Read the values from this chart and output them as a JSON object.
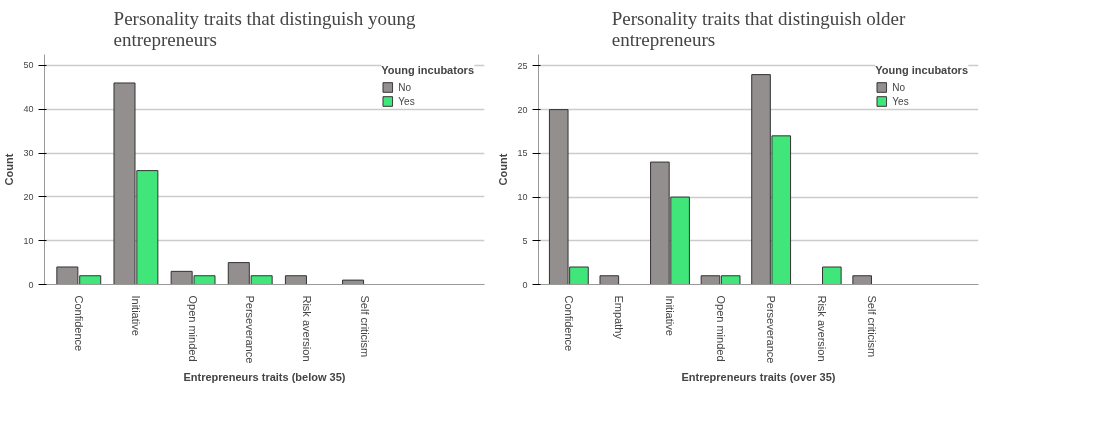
{
  "chart_data": [
    {
      "type": "bar",
      "title": "Personality traits that distinguish young entrepreneurs",
      "xlabel": "Entrepreneurs traits (below 35)",
      "ylabel": "Count",
      "legend_title": "Young incubators",
      "legend": "top right",
      "grid": "y",
      "categories": [
        "Confidence",
        "Initiative",
        "Open minded",
        "Perseverance",
        "Risk aversion",
        "Self criticism"
      ],
      "ylim": [
        0,
        52.5
      ],
      "yticks": [
        0,
        10,
        20,
        30,
        40,
        50
      ],
      "series": [
        {
          "name": "No",
          "color": "#948f8f",
          "values": [
            4,
            46,
            3,
            5,
            2,
            1
          ]
        },
        {
          "name": "Yes",
          "color": "#40e67a",
          "values": [
            2,
            26,
            2,
            2,
            null,
            null
          ]
        }
      ]
    },
    {
      "type": "bar",
      "title": "Personality traits that distinguish older entrepreneurs",
      "xlabel": "Entrepreneurs traits (over 35)",
      "ylabel": "Count",
      "legend_title": "Young incubators",
      "legend": "top right",
      "grid": "y",
      "categories": [
        "Confidence",
        "Empathy",
        "Initiative",
        "Open minded",
        "Perseverance",
        "Risk aversion",
        "Self criticism"
      ],
      "ylim": [
        0,
        26.3
      ],
      "yticks": [
        0,
        5,
        10,
        15,
        20,
        25
      ],
      "series": [
        {
          "name": "No",
          "color": "#948f8f",
          "values": [
            20,
            1,
            14,
            1,
            24,
            null,
            1
          ]
        },
        {
          "name": "Yes",
          "color": "#40e67a",
          "values": [
            2,
            null,
            10,
            1,
            17,
            2,
            null
          ]
        }
      ]
    }
  ]
}
